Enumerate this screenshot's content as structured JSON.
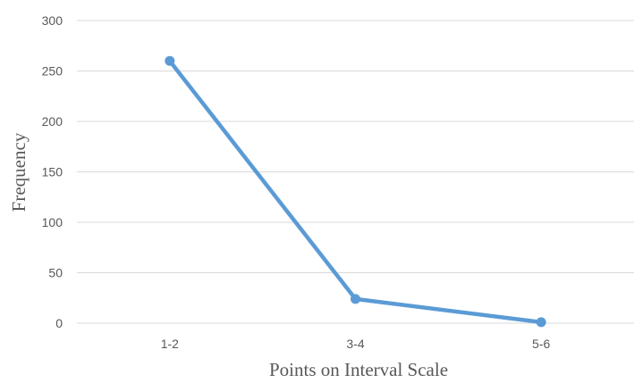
{
  "chart_data": {
    "type": "line",
    "title": "",
    "xlabel": "Points on Interval Scale",
    "ylabel": "Frequency",
    "categories": [
      "1-2",
      "3-4",
      "5-6"
    ],
    "series": [
      {
        "values": [
          260,
          24,
          1
        ],
        "color": "#5B9BD5"
      }
    ],
    "ylim": [
      0,
      300
    ],
    "yticks": [
      0,
      50,
      100,
      150,
      200,
      250,
      300
    ],
    "grid": true,
    "grid_color": "#D9D9D9",
    "legend": "none"
  }
}
